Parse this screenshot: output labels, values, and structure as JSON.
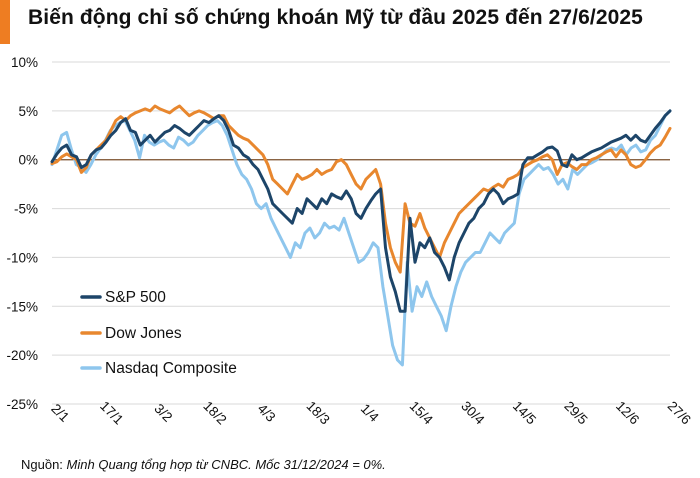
{
  "title": "Biến động chỉ số chứng khoán Mỹ từ đầu 2025 đến 27/6/2025",
  "footnote": {
    "prefix": "Nguồn: ",
    "text": "Minh Quang tổng hợp từ CNBC. Mốc 31/12/2024 = 0%."
  },
  "colors": {
    "accent": "#ee7d22",
    "sp500": "#1d4569",
    "dow": "#e8872e",
    "nasdaq": "#8ec6ed",
    "zero_line": "#7a4e2a"
  },
  "chart_data": {
    "type": "line",
    "ylim": [
      -25,
      10
    ],
    "yticks": [
      10,
      5,
      0,
      -5,
      -10,
      -15,
      -20,
      -25
    ],
    "ytick_labels": [
      "10%",
      "5%",
      "0%",
      "-5%",
      "-10%",
      "-15%",
      "-20%",
      "-25%"
    ],
    "xtick_labels": [
      "2/1",
      "17/1",
      "3/2",
      "18/2",
      "4/3",
      "18/3",
      "1/4",
      "15/4",
      "30/4",
      "14/5",
      "29/5",
      "12/6",
      "27/6"
    ],
    "grid": "horizontal",
    "legend": "bottom-left",
    "series": [
      {
        "name": "S&P 500",
        "values": [
          -0.2,
          0.6,
          1.2,
          1.5,
          0.5,
          0.3,
          -0.8,
          -0.5,
          0.5,
          1.0,
          1.2,
          1.8,
          2.5,
          3.0,
          3.8,
          4.2,
          3.0,
          2.8,
          1.5,
          2.0,
          2.5,
          1.8,
          2.3,
          2.8,
          3.0,
          3.5,
          3.2,
          2.8,
          2.5,
          3.0,
          3.5,
          4.0,
          3.8,
          4.2,
          4.5,
          4.0,
          3.0,
          1.5,
          1.2,
          0.5,
          0.2,
          -0.5,
          -1.0,
          -2.0,
          -3.0,
          -4.5,
          -5.0,
          -5.5,
          -6.0,
          -6.5,
          -5.0,
          -5.5,
          -4.0,
          -4.5,
          -5.0,
          -4.0,
          -4.5,
          -3.5,
          -3.8,
          -4.0,
          -3.2,
          -4.0,
          -5.5,
          -6.0,
          -5.0,
          -4.2,
          -3.5,
          -3.0,
          -9.0,
          -12.0,
          -13.5,
          -15.5,
          -15.5,
          -6.0,
          -10.5,
          -8.5,
          -9.0,
          -8.0,
          -9.5,
          -10.0,
          -11.0,
          -12.3,
          -10.0,
          -8.5,
          -7.5,
          -6.5,
          -6.0,
          -5.0,
          -4.5,
          -3.5,
          -3.0,
          -3.5,
          -4.5,
          -4.0,
          -3.8,
          -3.5,
          -0.5,
          0.2,
          0.2,
          0.5,
          0.8,
          1.2,
          1.3,
          0.9,
          -0.5,
          -0.7,
          0.5,
          0.0,
          0.2,
          0.5,
          0.8,
          1.0,
          1.2,
          1.5,
          1.8,
          2.0,
          2.2,
          2.5,
          2.0,
          2.5,
          2.0,
          1.8,
          2.5,
          3.2,
          3.8,
          4.5,
          5.0
        ]
      },
      {
        "name": "Dow Jones",
        "values": [
          -0.4,
          -0.2,
          0.3,
          0.6,
          0.3,
          0.0,
          -1.3,
          -0.8,
          0.5,
          1.0,
          1.5,
          2.0,
          3.0,
          4.0,
          4.4,
          4.0,
          4.5,
          4.8,
          5.0,
          5.2,
          5.0,
          5.5,
          5.2,
          5.0,
          4.8,
          5.2,
          5.5,
          5.0,
          4.5,
          4.8,
          5.0,
          4.8,
          4.5,
          4.2,
          4.5,
          4.5,
          3.5,
          3.0,
          2.5,
          2.2,
          2.0,
          1.5,
          1.0,
          0.5,
          -0.5,
          -2.0,
          -2.5,
          -3.0,
          -3.5,
          -2.5,
          -1.5,
          -2.0,
          -1.8,
          -1.5,
          -1.0,
          -1.5,
          -1.2,
          -1.0,
          -0.2,
          0.0,
          -0.5,
          -1.5,
          -2.5,
          -3.0,
          -2.0,
          -1.5,
          -1.0,
          -2.5,
          -6.5,
          -9.0,
          -10.5,
          -11.5,
          -4.5,
          -6.5,
          -6.8,
          -5.5,
          -7.0,
          -8.0,
          -9.0,
          -10.0,
          -8.5,
          -7.5,
          -6.5,
          -5.5,
          -5.0,
          -4.5,
          -4.0,
          -3.5,
          -3.0,
          -3.2,
          -2.8,
          -2.5,
          -2.8,
          -2.0,
          -1.8,
          -1.5,
          -0.8,
          -0.5,
          -0.2,
          0.0,
          0.3,
          0.5,
          0.0,
          -1.5,
          -0.5,
          -0.3,
          -0.7,
          -1.0,
          -0.5,
          -0.5,
          0.0,
          0.2,
          0.5,
          0.8,
          1.0,
          0.3,
          1.0,
          0.5,
          -0.5,
          -0.8,
          -0.6,
          0.0,
          0.7,
          1.2,
          1.5,
          2.3,
          3.2
        ]
      },
      {
        "name": "Nasdaq Composite",
        "values": [
          -0.5,
          1.0,
          2.5,
          2.8,
          1.0,
          -0.5,
          -0.8,
          -1.3,
          -0.5,
          0.5,
          1.2,
          2.0,
          3.0,
          3.5,
          3.8,
          4.0,
          3.0,
          2.0,
          0.2,
          2.5,
          1.8,
          1.5,
          1.8,
          2.0,
          1.5,
          1.2,
          2.3,
          2.0,
          1.5,
          1.8,
          2.5,
          3.0,
          3.5,
          3.8,
          4.0,
          3.5,
          2.5,
          1.0,
          -0.5,
          -1.5,
          -2.0,
          -3.0,
          -4.5,
          -5.0,
          -4.5,
          -6.0,
          -7.0,
          -8.0,
          -9.0,
          -10.0,
          -8.5,
          -9.0,
          -7.5,
          -7.0,
          -8.0,
          -7.5,
          -6.5,
          -7.0,
          -6.8,
          -7.2,
          -6.0,
          -7.5,
          -9.0,
          -10.5,
          -10.2,
          -9.5,
          -8.5,
          -9.0,
          -13.0,
          -16.0,
          -19.0,
          -20.5,
          -21.0,
          -10.5,
          -15.5,
          -13.0,
          -14.0,
          -12.5,
          -14.0,
          -15.0,
          -16.0,
          -17.5,
          -15.0,
          -13.0,
          -11.5,
          -10.5,
          -10.0,
          -9.5,
          -9.5,
          -8.5,
          -7.5,
          -8.0,
          -8.5,
          -7.5,
          -7.0,
          -6.5,
          -3.5,
          -2.0,
          -1.5,
          -1.0,
          -0.5,
          -1.0,
          -0.8,
          -1.5,
          -2.5,
          -2.0,
          -3.0,
          -1.0,
          -1.5,
          -1.0,
          -0.5,
          -0.3,
          0.0,
          0.5,
          1.0,
          1.2,
          1.0,
          1.5,
          0.5,
          1.2,
          1.5,
          0.8,
          1.0,
          2.0,
          2.5,
          3.5,
          4.5,
          5.0
        ]
      }
    ]
  }
}
